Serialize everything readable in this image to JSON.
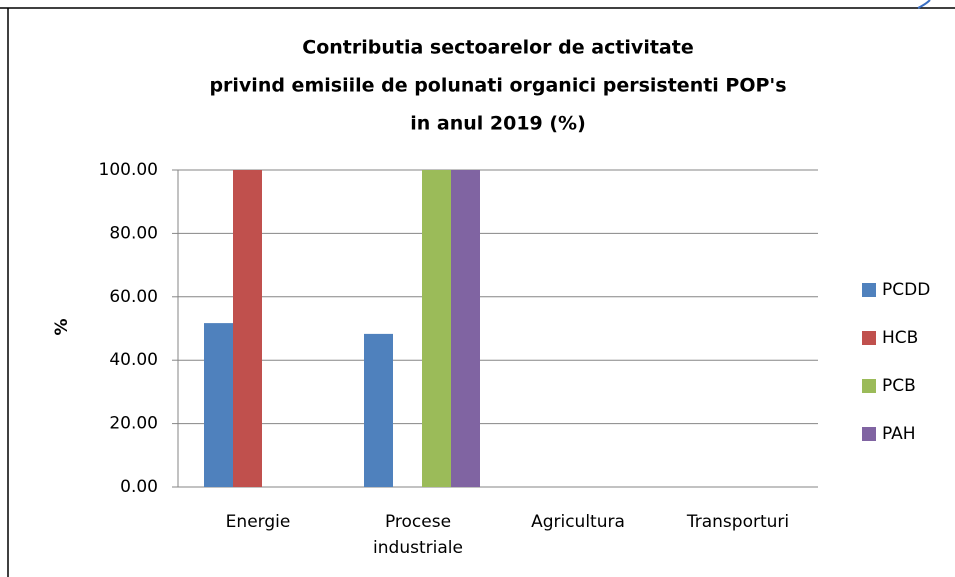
{
  "chart_data": {
    "type": "bar",
    "title": [
      "Contributia sectoarelor de activitate",
      "privind emisiile de polunati organici persistenti POP's",
      "in anul 2019 (%)"
    ],
    "ylabel": "%",
    "categories": [
      "Energie",
      "Procese industriale",
      "Agricultura",
      "Transporturi"
    ],
    "series": [
      {
        "name": "PCDD",
        "color": "#4f81bd",
        "values": [
          51.7,
          48.3,
          0,
          0
        ]
      },
      {
        "name": "HCB",
        "color": "#c0504d",
        "values": [
          100,
          0,
          0,
          0
        ]
      },
      {
        "name": "PCB",
        "color": "#9bbb59",
        "values": [
          0,
          100,
          0,
          0
        ]
      },
      {
        "name": "PAH",
        "color": "#8064a2",
        "values": [
          0,
          100,
          0,
          0
        ]
      }
    ],
    "ylim": [
      0,
      100
    ],
    "yticks": [
      {
        "value": 0,
        "label": "0.00"
      },
      {
        "value": 20,
        "label": "20.00"
      },
      {
        "value": 40,
        "label": "40.00"
      },
      {
        "value": 60,
        "label": "60.00"
      },
      {
        "value": 80,
        "label": "80.00"
      },
      {
        "value": 100,
        "label": "100.00"
      }
    ],
    "grid": true,
    "legend": "right"
  }
}
